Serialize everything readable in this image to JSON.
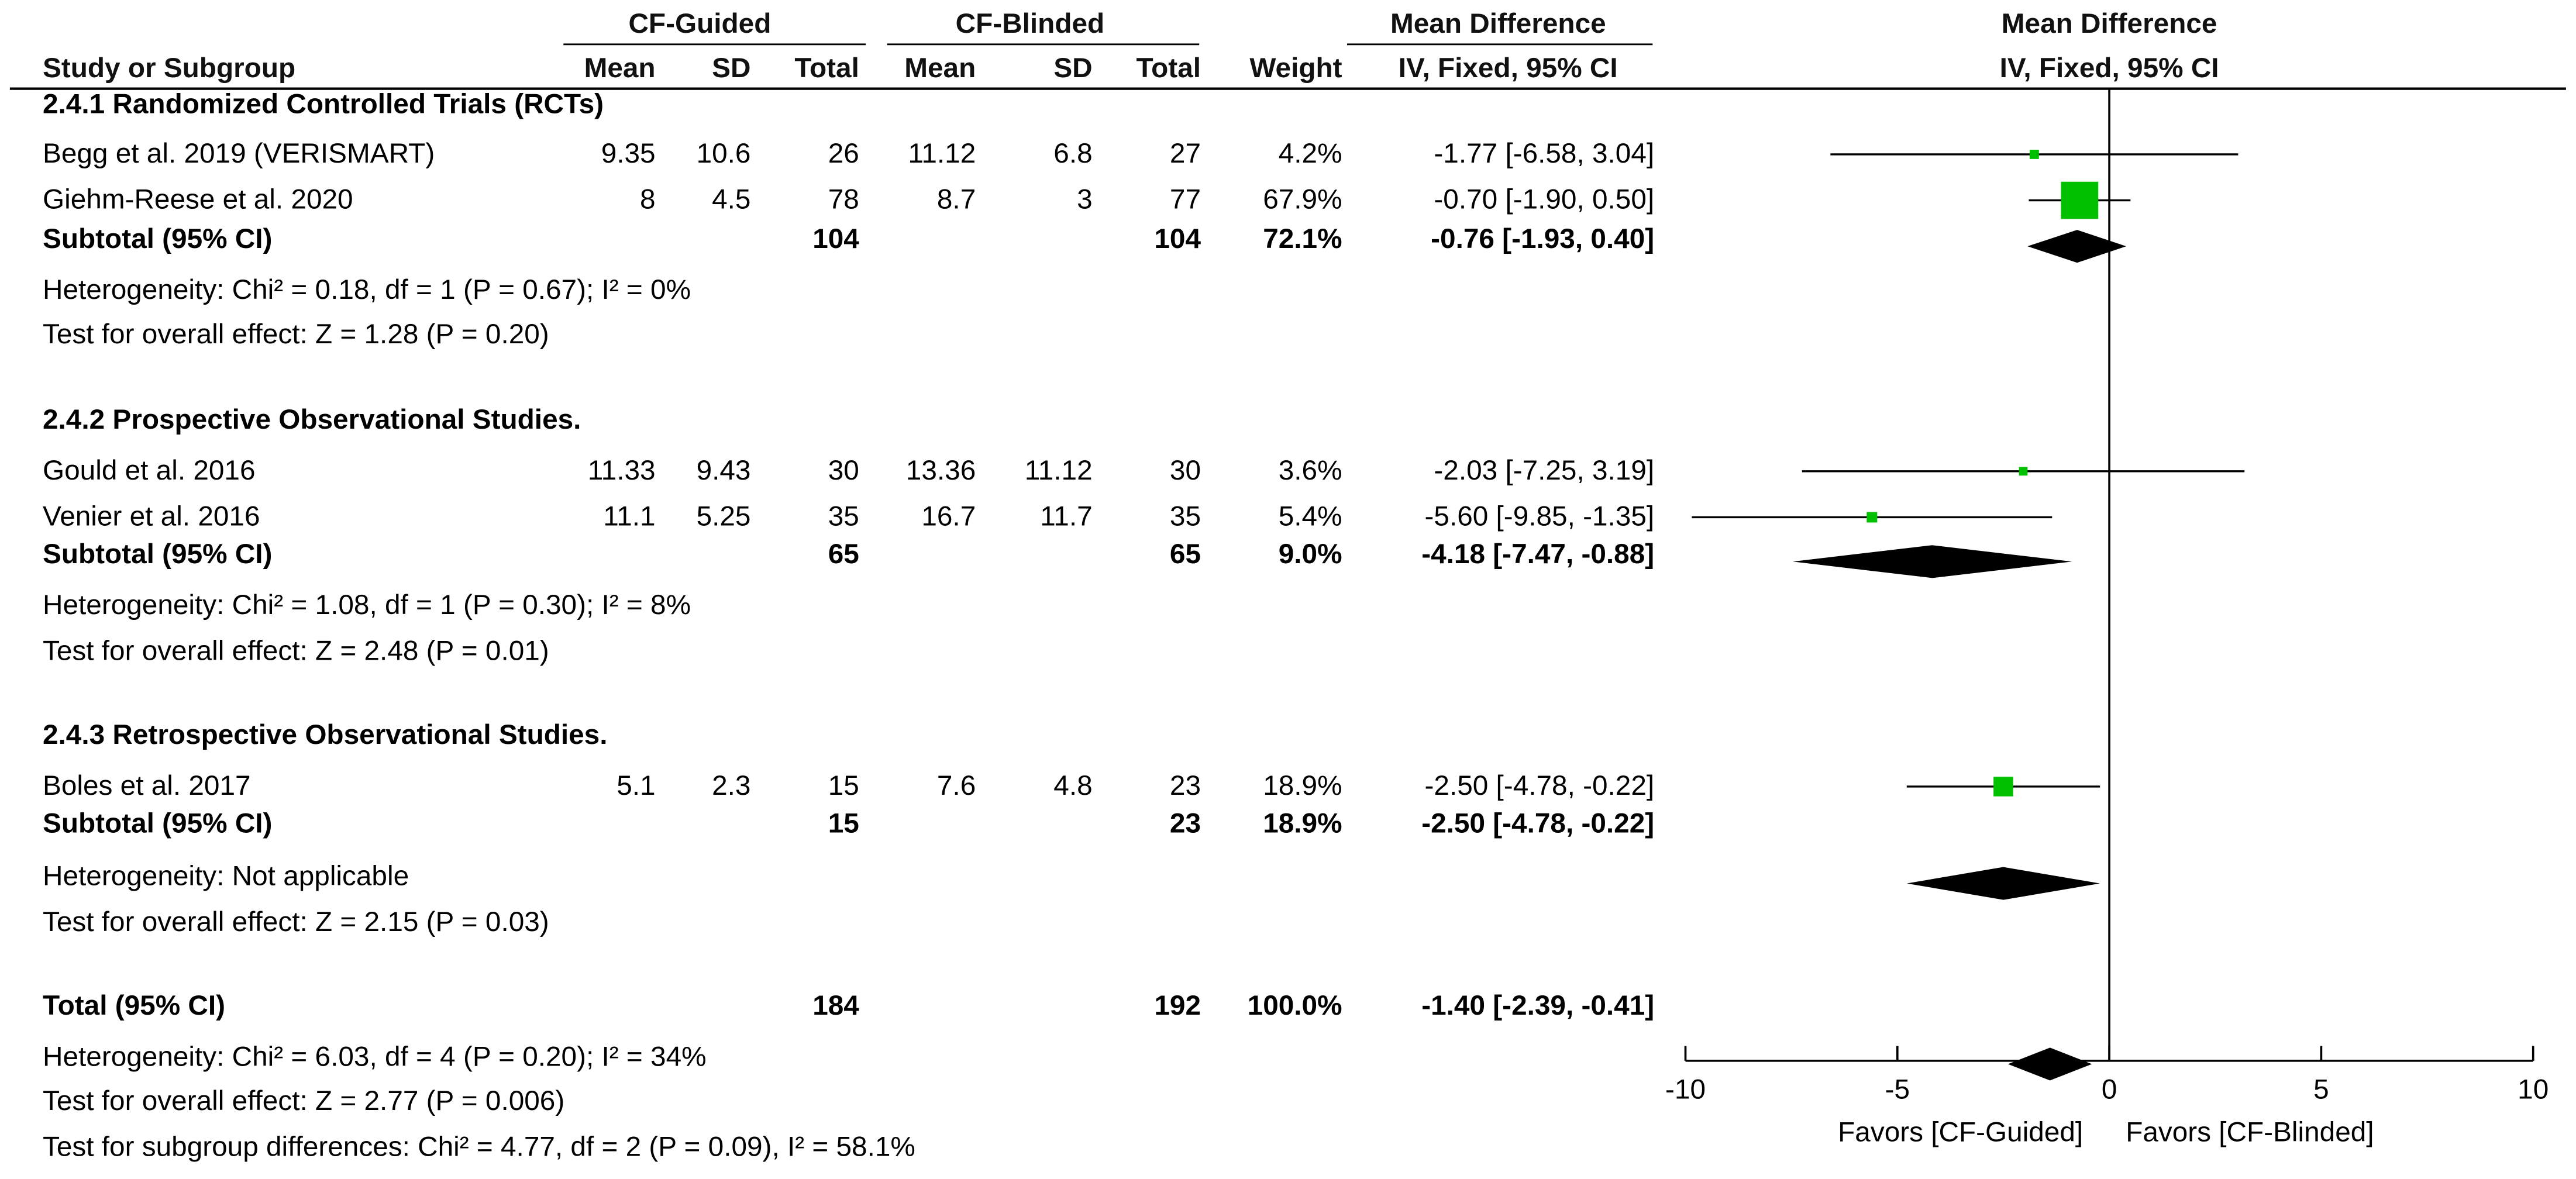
{
  "header": {
    "group1": "CF-Guided",
    "group2": "CF-Blinded",
    "study_col": "Study or Subgroup",
    "mean": "Mean",
    "sd": "SD",
    "total": "Total",
    "weight": "Weight",
    "md_title": "Mean Difference",
    "md_method": "IV, Fixed, 95% CI",
    "plot_title": "Mean Difference",
    "plot_method": "IV, Fixed, 95% CI"
  },
  "rows": [
    {
      "kind": "group",
      "label": "2.4.1 Randomized Controlled Trials (RCTs)"
    },
    {
      "kind": "study",
      "label": "Begg et al. 2019 (VERISMART)",
      "m1": "9.35",
      "sd1": "10.6",
      "n1": "26",
      "m2": "11.12",
      "sd2": "6.8",
      "n2": "27",
      "weight": "4.2%",
      "ci": "-1.77 [-6.58, 3.04]"
    },
    {
      "kind": "study",
      "label": "Giehm-Reese et al. 2020",
      "m1": "8",
      "sd1": "4.5",
      "n1": "78",
      "m2": "8.7",
      "sd2": "3",
      "n2": "77",
      "weight": "67.9%",
      "ci": "-0.70 [-1.90, 0.50]"
    },
    {
      "kind": "subtotal",
      "label": "Subtotal (95% CI)",
      "n1": "104",
      "n2": "104",
      "weight": "72.1%",
      "ci": "-0.76 [-1.93, 0.40]"
    },
    {
      "kind": "note",
      "label": "Heterogeneity: Chi² = 0.18, df = 1 (P = 0.67); I² = 0%"
    },
    {
      "kind": "note",
      "label": "Test for overall effect: Z = 1.28 (P = 0.20)"
    },
    {
      "kind": "group",
      "label": "2.4.2 Prospective Observational Studies."
    },
    {
      "kind": "study",
      "label": "Gould et al. 2016",
      "m1": "11.33",
      "sd1": "9.43",
      "n1": "30",
      "m2": "13.36",
      "sd2": "11.12",
      "n2": "30",
      "weight": "3.6%",
      "ci": "-2.03 [-7.25, 3.19]"
    },
    {
      "kind": "study",
      "label": "Venier et al. 2016",
      "m1": "11.1",
      "sd1": "5.25",
      "n1": "35",
      "m2": "16.7",
      "sd2": "11.7",
      "n2": "35",
      "weight": "5.4%",
      "ci": "-5.60 [-9.85, -1.35]"
    },
    {
      "kind": "subtotal",
      "label": "Subtotal (95% CI)",
      "n1": "65",
      "n2": "65",
      "weight": "9.0%",
      "ci": "-4.18 [-7.47, -0.88]"
    },
    {
      "kind": "note",
      "label": "Heterogeneity: Chi² = 1.08, df = 1 (P = 0.30); I² = 8%"
    },
    {
      "kind": "note",
      "label": "Test for overall effect: Z = 2.48 (P = 0.01)"
    },
    {
      "kind": "group",
      "label": "2.4.3 Retrospective Observational Studies."
    },
    {
      "kind": "study",
      "label": "Boles et al. 2017",
      "m1": "5.1",
      "sd1": "2.3",
      "n1": "15",
      "m2": "7.6",
      "sd2": "4.8",
      "n2": "23",
      "weight": "18.9%",
      "ci": "-2.50 [-4.78, -0.22]"
    },
    {
      "kind": "subtotal",
      "label": "Subtotal (95% CI)",
      "n1": "15",
      "n2": "23",
      "weight": "18.9%",
      "ci": "-2.50 [-4.78, -0.22]"
    },
    {
      "kind": "note",
      "label": "Heterogeneity: Not applicable"
    },
    {
      "kind": "note",
      "label": "Test for overall effect: Z = 2.15 (P = 0.03)"
    },
    {
      "kind": "total",
      "label": "Total (95% CI)",
      "n1": "184",
      "n2": "192",
      "weight": "100.0%",
      "ci": "-1.40 [-2.39, -0.41]"
    },
    {
      "kind": "note",
      "label": "Heterogeneity: Chi² = 6.03, df = 4 (P = 0.20); I² = 34%"
    },
    {
      "kind": "note",
      "label": "Test for overall effect: Z = 2.77 (P = 0.006)"
    },
    {
      "kind": "note",
      "label": "Test for subgroup differences: Chi² = 4.77, df = 2 (P = 0.09), I² = 58.1%"
    }
  ],
  "chart_data": {
    "type": "forest",
    "title": "Mean Difference",
    "subtitle": "IV, Fixed, 95% CI",
    "xlim": [
      -10,
      10
    ],
    "ticks": [
      -10,
      -5,
      0,
      5,
      10
    ],
    "tick_labels": [
      "-10",
      "-5",
      "0",
      "5",
      "10"
    ],
    "xlabel_left": "Favors [CF-Guided]",
    "xlabel_right": "Favors [CF-Blinded]",
    "reference_line": 0,
    "colors": {
      "square": "#00c000",
      "diamond": "#000000",
      "line": "#000000"
    },
    "studies": [
      {
        "name": "Begg et al. 2019 (VERISMART)",
        "md": -1.77,
        "lo": -6.58,
        "hi": 3.04,
        "weight": 4.2
      },
      {
        "name": "Giehm-Reese et al. 2020",
        "md": -0.7,
        "lo": -1.9,
        "hi": 0.5,
        "weight": 67.9
      },
      {
        "name": "Gould et al. 2016",
        "md": -2.03,
        "lo": -7.25,
        "hi": 3.19,
        "weight": 3.6
      },
      {
        "name": "Venier et al. 2016",
        "md": -5.6,
        "lo": -9.85,
        "hi": -1.35,
        "weight": 5.4
      },
      {
        "name": "Boles et al. 2017",
        "md": -2.5,
        "lo": -4.78,
        "hi": -0.22,
        "weight": 18.9
      }
    ],
    "summaries": [
      {
        "name": "Subtotal 2.4.1",
        "md": -0.76,
        "lo": -1.93,
        "hi": 0.4
      },
      {
        "name": "Subtotal 2.4.2",
        "md": -4.18,
        "lo": -7.47,
        "hi": -0.88
      },
      {
        "name": "Subtotal 2.4.3",
        "md": -2.5,
        "lo": -4.78,
        "hi": -0.22
      },
      {
        "name": "Total",
        "md": -1.4,
        "lo": -2.39,
        "hi": -0.41
      }
    ]
  }
}
